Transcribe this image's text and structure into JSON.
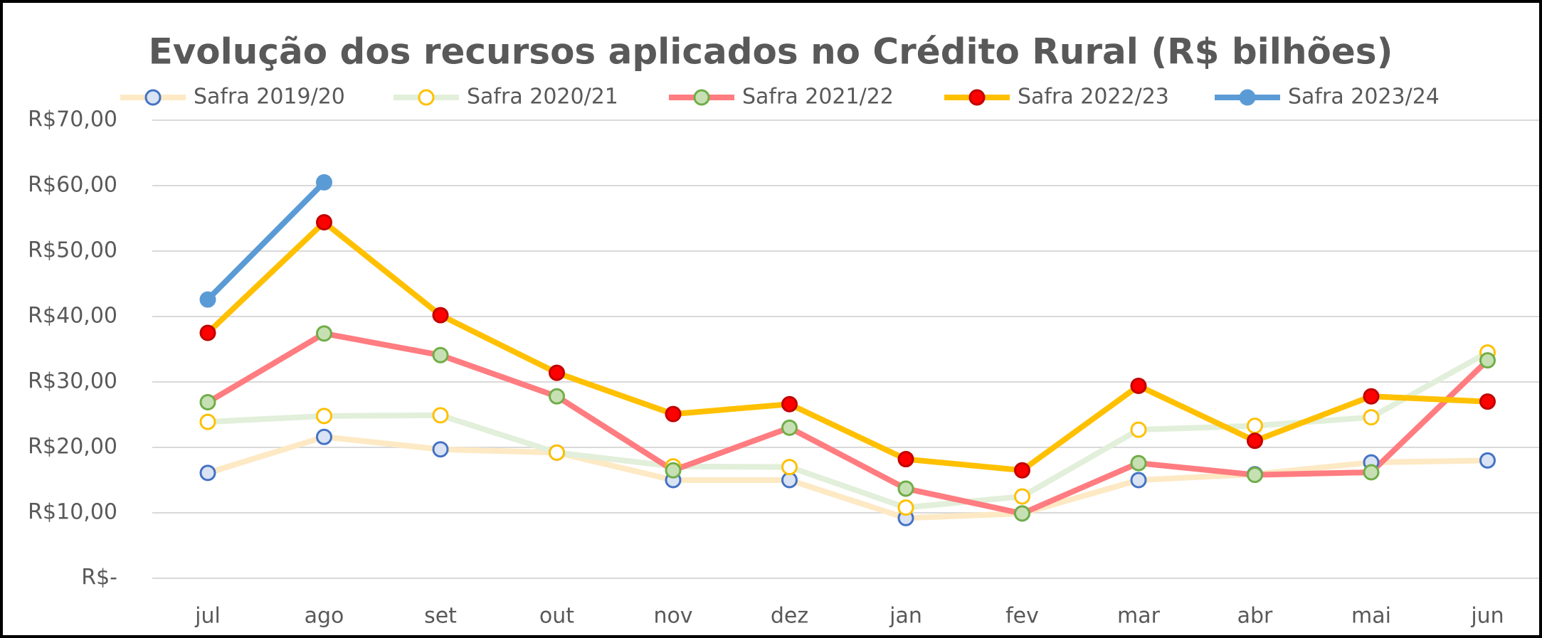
{
  "chart_data": {
    "type": "line",
    "title": "Evolução dos recursos aplicados no Crédito Rural (R$ bilhões)",
    "categories": [
      "jul",
      "ago",
      "set",
      "out",
      "nov",
      "dez",
      "jan",
      "fev",
      "mar",
      "abr",
      "mai",
      "jun"
    ],
    "series": [
      {
        "name": "Safra 2019/20",
        "color": "#fde9c4",
        "marker_color": "#dae3f3",
        "marker_edge": "#4472c4",
        "values": [
          16.1,
          21.6,
          19.7,
          19.2,
          15.0,
          15.0,
          9.2,
          9.9,
          15.0,
          15.9,
          17.7,
          18.0
        ]
      },
      {
        "name": "Safra 2020/21",
        "color": "#e2efda",
        "marker_color": "#ffffff",
        "marker_edge": "#ffc000",
        "values": [
          23.9,
          24.8,
          24.9,
          19.2,
          17.1,
          17.0,
          10.8,
          12.5,
          22.7,
          23.3,
          24.6,
          34.5
        ]
      },
      {
        "name": "Safra 2021/22",
        "color": "#ff7c80",
        "marker_color": "#c6e0b4",
        "marker_edge": "#70ad47",
        "values": [
          26.9,
          37.4,
          34.1,
          27.8,
          16.5,
          23.0,
          13.7,
          9.9,
          17.6,
          15.8,
          16.2,
          33.3
        ]
      },
      {
        "name": "Safra 2022/23",
        "color": "#ffc000",
        "marker_color": "#ff0000",
        "marker_edge": "#c00000",
        "values": [
          37.5,
          54.4,
          40.2,
          31.4,
          25.1,
          26.6,
          18.2,
          16.5,
          29.4,
          21.0,
          27.8,
          27.0
        ]
      },
      {
        "name": "Safra 2023/24",
        "color": "#5b9bd5",
        "marker_color": "#5b9bd5",
        "marker_edge": "#5b9bd5",
        "values": [
          42.6,
          60.5,
          null,
          null,
          null,
          null,
          null,
          null,
          null,
          null,
          null,
          null
        ]
      }
    ],
    "ylim": [
      0,
      70
    ],
    "yticks": [
      {
        "value": 0,
        "label": "R$-"
      },
      {
        "value": 10,
        "label": "R$10,00"
      },
      {
        "value": 20,
        "label": "R$20,00"
      },
      {
        "value": 30,
        "label": "R$30,00"
      },
      {
        "value": 40,
        "label": "R$40,00"
      },
      {
        "value": 50,
        "label": "R$50,00"
      },
      {
        "value": 60,
        "label": "R$60,00"
      },
      {
        "value": 70,
        "label": "R$70,00"
      }
    ],
    "grid": true,
    "legend": "top"
  }
}
